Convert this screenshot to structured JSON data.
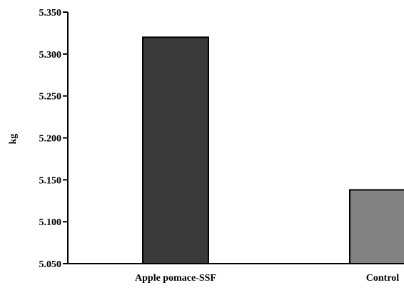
{
  "chart_data": {
    "type": "bar",
    "title": "",
    "xlabel": "",
    "ylabel": "kg",
    "categories": [
      "Apple pomace-SSF",
      "Control"
    ],
    "values": [
      5.32,
      5.138
    ],
    "colors": [
      "#3a3a3a",
      "#828282"
    ],
    "ylim": [
      5.05,
      5.35
    ],
    "yticks": [
      5.05,
      5.1,
      5.15,
      5.2,
      5.25,
      5.3,
      5.35
    ],
    "ytick_labels": [
      "5.050",
      "5.100",
      "5.150",
      "5.200",
      "5.250",
      "5.300",
      "5.350"
    ],
    "grid": false,
    "legend": "none"
  }
}
